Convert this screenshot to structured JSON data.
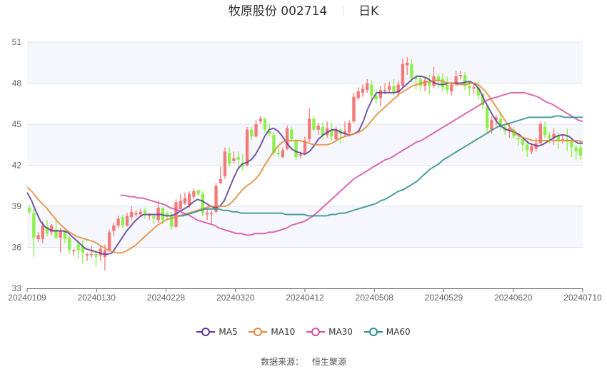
{
  "header": {
    "stock_name": "牧原股份",
    "stock_code": "002714",
    "period": "日K"
  },
  "legend": [
    {
      "label": "MA5",
      "color": "#5b3a99"
    },
    {
      "label": "MA10",
      "color": "#e08c3a"
    },
    {
      "label": "MA30",
      "color": "#d54fa0"
    },
    {
      "label": "MA60",
      "color": "#2f8c8c"
    }
  ],
  "footer": {
    "source_label": "数据来源：",
    "source_value": "恒生聚源"
  },
  "colors": {
    "up": "#f47a7a",
    "down": "#8ef04a",
    "grid": "#dde3ef",
    "band": "#f5f7fc",
    "axis": "#666666"
  },
  "chart_data": {
    "type": "candlestick",
    "title": "牧原股份 002714 日K",
    "xlabel": "",
    "ylabel": "",
    "ylim": [
      33,
      51
    ],
    "yticks": [
      33,
      36,
      39,
      42,
      45,
      48,
      51
    ],
    "xtick_labels": [
      "20240109",
      "20240130",
      "20240228",
      "20240320",
      "20240412",
      "20240508",
      "20240529",
      "20240620",
      "20240710"
    ],
    "grid": true,
    "legend_position": "bottom",
    "candles": [
      [
        38.9,
        38.6,
        39.1,
        38.4
      ],
      [
        38.5,
        36.7,
        38.8,
        35.3
      ],
      [
        36.6,
        36.9,
        37.1,
        36.4
      ],
      [
        36.6,
        37.6,
        37.9,
        36.3
      ],
      [
        37.5,
        37.0,
        38.0,
        36.8
      ],
      [
        37.1,
        37.6,
        37.7,
        36.9
      ],
      [
        37.3,
        36.7,
        38.1,
        36.6
      ],
      [
        36.7,
        37.2,
        37.4,
        35.6
      ],
      [
        37.2,
        36.6,
        37.3,
        36.3
      ],
      [
        36.7,
        35.8,
        36.8,
        35.5
      ],
      [
        35.8,
        35.8,
        35.9,
        35.4
      ],
      [
        36.2,
        35.8,
        36.4,
        35.2
      ],
      [
        36.1,
        35.6,
        36.5,
        34.8
      ],
      [
        35.4,
        35.5,
        35.6,
        35.0
      ],
      [
        35.5,
        35.5,
        36.1,
        35.2
      ],
      [
        35.5,
        35.3,
        35.8,
        34.6
      ],
      [
        35.4,
        35.9,
        36.1,
        35.0
      ],
      [
        35.3,
        35.8,
        36.2,
        34.3
      ],
      [
        35.8,
        37.1,
        37.3,
        35.7
      ],
      [
        37.2,
        37.6,
        37.8,
        36.8
      ],
      [
        37.6,
        38.1,
        38.3,
        37.4
      ],
      [
        38.2,
        37.6,
        38.4,
        37.4
      ],
      [
        37.6,
        38.3,
        38.5,
        37.5
      ],
      [
        38.2,
        38.6,
        39.0,
        38.0
      ],
      [
        38.4,
        38.5,
        38.7,
        38.2
      ],
      [
        38.4,
        38.6,
        38.8,
        38.3
      ],
      [
        38.7,
        38.5,
        38.9,
        38.1
      ],
      [
        38.3,
        38.4,
        38.5,
        38.0
      ],
      [
        38.3,
        38.1,
        38.4,
        37.7
      ],
      [
        38.0,
        38.9,
        39.4,
        37.8
      ],
      [
        38.9,
        38.0,
        38.9,
        37.7
      ],
      [
        38.5,
        38.3,
        38.6,
        38.0
      ],
      [
        38.4,
        37.5,
        38.6,
        37.3
      ],
      [
        37.5,
        39.3,
        39.5,
        37.4
      ],
      [
        38.8,
        39.4,
        39.9,
        38.7
      ],
      [
        39.2,
        39.6,
        40.0,
        39.1
      ],
      [
        39.1,
        39.9,
        40.1,
        38.9
      ],
      [
        39.7,
        40.1,
        40.3,
        39.5
      ],
      [
        40.2,
        39.9,
        40.2,
        39.7
      ],
      [
        39.9,
        38.5,
        40.1,
        38.3
      ],
      [
        38.4,
        38.5,
        38.8,
        38.0
      ],
      [
        38.5,
        38.5,
        38.7,
        37.7
      ],
      [
        38.6,
        40.5,
        40.7,
        38.5
      ],
      [
        40.7,
        41.0,
        41.9,
        40.6
      ],
      [
        41.2,
        43.0,
        43.3,
        41.0
      ],
      [
        42.9,
        42.1,
        43.3,
        41.9
      ],
      [
        42.3,
        42.5,
        43.0,
        42.1
      ],
      [
        42.6,
        42.4,
        43.0,
        41.8
      ],
      [
        42.1,
        41.9,
        42.8,
        41.6
      ],
      [
        42.0,
        44.6,
        44.8,
        41.9
      ],
      [
        44.6,
        44.1,
        44.8,
        43.8
      ],
      [
        44.1,
        45.0,
        45.3,
        44.0
      ],
      [
        45.2,
        45.4,
        45.6,
        45.0
      ],
      [
        45.4,
        44.6,
        45.4,
        44.4
      ],
      [
        44.5,
        44.3,
        45.0,
        44.1
      ],
      [
        44.2,
        42.9,
        44.4,
        42.7
      ],
      [
        42.9,
        42.8,
        43.4,
        42.6
      ],
      [
        42.6,
        43.1,
        43.3,
        42.5
      ],
      [
        43.2,
        44.7,
        44.9,
        43.1
      ],
      [
        44.6,
        43.9,
        44.8,
        43.7
      ],
      [
        43.8,
        42.6,
        43.9,
        42.4
      ],
      [
        42.7,
        42.8,
        43.0,
        42.5
      ],
      [
        42.9,
        43.8,
        44.1,
        42.8
      ],
      [
        43.9,
        45.4,
        46.2,
        43.7
      ],
      [
        45.4,
        44.6,
        45.6,
        44.5
      ],
      [
        44.6,
        44.9,
        45.1,
        44.2
      ],
      [
        44.8,
        44.2,
        45.1,
        43.9
      ],
      [
        44.2,
        44.7,
        45.2,
        44.0
      ],
      [
        44.6,
        44.1,
        45.1,
        43.8
      ],
      [
        43.9,
        44.6,
        44.8,
        43.8
      ],
      [
        44.6,
        44.3,
        44.7,
        43.6
      ],
      [
        44.3,
        44.5,
        45.2,
        44.1
      ],
      [
        44.4,
        45.1,
        45.3,
        44.1
      ],
      [
        45.2,
        47.0,
        47.3,
        45.1
      ],
      [
        46.9,
        47.4,
        47.7,
        46.8
      ],
      [
        47.3,
        47.6,
        47.9,
        47.0
      ],
      [
        47.5,
        48.0,
        48.3,
        47.3
      ],
      [
        47.9,
        47.1,
        48.2,
        46.6
      ],
      [
        47.1,
        46.8,
        47.6,
        46.5
      ],
      [
        46.9,
        47.5,
        47.8,
        46.3
      ],
      [
        47.4,
        47.5,
        48.0,
        47.2
      ],
      [
        47.5,
        47.8,
        48.1,
        47.3
      ],
      [
        47.8,
        47.3,
        48.3,
        47.1
      ],
      [
        47.3,
        47.9,
        48.2,
        47.0
      ],
      [
        47.8,
        49.4,
        49.8,
        47.7
      ],
      [
        49.3,
        49.5,
        49.9,
        48.6
      ],
      [
        49.4,
        48.4,
        49.8,
        48.1
      ],
      [
        48.4,
        48.3,
        48.6,
        47.5
      ],
      [
        48.3,
        47.8,
        48.5,
        47.4
      ],
      [
        47.8,
        48.2,
        48.4,
        47.4
      ],
      [
        48.1,
        47.8,
        48.6,
        47.2
      ],
      [
        47.8,
        48.5,
        49.2,
        47.6
      ],
      [
        48.5,
        48.2,
        48.7,
        47.6
      ],
      [
        48.3,
        47.7,
        48.7,
        47.4
      ],
      [
        47.9,
        47.5,
        48.5,
        47.2
      ],
      [
        47.4,
        47.9,
        48.1,
        47.1
      ],
      [
        47.9,
        48.5,
        48.9,
        47.8
      ],
      [
        48.5,
        48.6,
        48.9,
        48.3
      ],
      [
        48.6,
        47.8,
        48.8,
        47.5
      ],
      [
        47.8,
        47.6,
        48.2,
        47.1
      ],
      [
        47.6,
        47.7,
        48.0,
        47.2
      ],
      [
        47.7,
        47.1,
        48.1,
        46.8
      ],
      [
        47.2,
        46.4,
        47.3,
        46.1
      ],
      [
        46.3,
        44.7,
        46.4,
        44.3
      ],
      [
        44.6,
        45.3,
        45.6,
        44.3
      ],
      [
        45.3,
        45.5,
        45.7,
        44.9
      ],
      [
        45.4,
        44.8,
        45.9,
        44.6
      ],
      [
        44.8,
        44.5,
        45.0,
        44.2
      ],
      [
        44.5,
        44.7,
        45.1,
        44.0
      ],
      [
        44.6,
        44.1,
        44.8,
        43.9
      ],
      [
        44.0,
        43.9,
        44.2,
        43.4
      ],
      [
        43.9,
        43.5,
        44.1,
        43.0
      ],
      [
        43.5,
        43.1,
        43.8,
        42.6
      ],
      [
        43.0,
        43.4,
        43.6,
        42.8
      ],
      [
        43.2,
        43.6,
        44.0,
        43.0
      ],
      [
        43.6,
        45.0,
        45.2,
        43.5
      ],
      [
        44.8,
        44.2,
        45.2,
        44.0
      ],
      [
        44.2,
        44.0,
        44.4,
        43.6
      ],
      [
        44.0,
        44.3,
        44.7,
        43.5
      ],
      [
        44.2,
        43.8,
        44.4,
        43.2
      ],
      [
        43.9,
        43.9,
        44.3,
        43.6
      ],
      [
        43.9,
        43.7,
        44.7,
        43.0
      ],
      [
        43.8,
        43.3,
        43.9,
        42.6
      ],
      [
        43.3,
        43.0,
        43.5,
        42.4
      ],
      [
        43.3,
        42.7,
        43.8,
        42.4
      ]
    ],
    "series": [
      {
        "name": "MA5",
        "values": [
          40.0,
          39.4,
          38.6,
          37.9,
          37.5,
          37.3,
          37.2,
          37.2,
          37.2,
          37.1,
          36.8,
          36.5,
          36.2,
          35.9,
          35.8,
          35.7,
          35.6,
          35.5,
          35.5,
          35.6,
          36.1,
          36.6,
          37.1,
          37.5,
          37.9,
          38.2,
          38.4,
          38.4,
          38.4,
          38.4,
          38.4,
          38.3,
          38.3,
          38.4,
          38.6,
          38.8,
          39.0,
          39.3,
          39.5,
          39.4,
          39.2,
          39.0,
          38.9,
          39.0,
          39.4,
          40.2,
          41.0,
          41.7,
          42.1,
          42.2,
          42.4,
          42.8,
          43.4,
          44.1,
          44.6,
          44.7,
          44.5,
          44.1,
          43.6,
          43.2,
          43.0,
          42.9,
          42.8,
          43.0,
          43.4,
          43.9,
          44.2,
          44.4,
          44.6,
          44.6,
          44.4,
          44.3,
          44.2,
          44.3,
          44.5,
          45.2,
          46.1,
          46.8,
          47.3,
          47.3,
          47.3,
          47.3,
          47.3,
          47.4,
          47.7,
          48.0,
          48.3,
          48.5,
          48.5,
          48.4,
          48.2,
          48.0,
          47.9,
          47.9,
          48.0,
          48.0,
          48.0,
          48.0,
          48.1,
          48.1,
          47.9,
          47.5,
          46.8,
          46.2,
          45.6,
          45.1,
          44.8,
          44.6,
          44.5,
          44.4,
          44.2,
          43.9,
          43.6,
          43.5,
          43.4,
          43.5,
          43.7,
          43.9,
          44.1,
          44.2,
          44.2,
          44.1,
          43.8,
          43.6,
          43.6
        ]
      },
      {
        "name": "MA10",
        "values": [
          40.4,
          40.1,
          39.7,
          39.3,
          39.0,
          38.6,
          38.2,
          37.8,
          37.5,
          37.2,
          37.0,
          36.8,
          36.7,
          36.6,
          36.5,
          36.4,
          36.2,
          36.0,
          35.8,
          35.7,
          35.6,
          35.6,
          35.7,
          35.9,
          36.1,
          36.4,
          36.7,
          37.0,
          37.3,
          37.6,
          37.8,
          38.0,
          38.1,
          38.2,
          38.3,
          38.4,
          38.5,
          38.6,
          38.7,
          38.8,
          38.9,
          39.0,
          39.0,
          39.0,
          39.0,
          39.1,
          39.4,
          39.8,
          40.2,
          40.5,
          40.7,
          41.0,
          41.4,
          42.0,
          42.5,
          43.0,
          43.4,
          43.7,
          43.8,
          43.8,
          43.8,
          43.8,
          43.7,
          43.6,
          43.5,
          43.5,
          43.5,
          43.5,
          43.6,
          43.8,
          44.0,
          44.1,
          44.2,
          44.3,
          44.4,
          44.6,
          44.9,
          45.3,
          45.7,
          46.0,
          46.3,
          46.6,
          46.9,
          47.2,
          47.4,
          47.6,
          47.8,
          47.9,
          48.0,
          48.1,
          48.1,
          48.2,
          48.2,
          48.1,
          48.0,
          48.0,
          47.9,
          47.9,
          47.9,
          48.0,
          48.0,
          47.8,
          47.5,
          47.1,
          46.6,
          46.1,
          45.6,
          45.1,
          44.7,
          44.3,
          44.1,
          44.0,
          43.9,
          43.8,
          43.8,
          43.8,
          43.8,
          43.8,
          43.8,
          43.8,
          43.8,
          43.8,
          43.8,
          43.8,
          43.7
        ]
      },
      {
        "name": "MA30",
        "values": [
          39.8,
          39.8,
          39.7,
          39.7,
          39.6,
          39.6,
          39.5,
          39.4,
          39.3,
          39.2,
          39.1,
          38.9,
          38.8,
          38.7,
          38.5,
          38.4,
          38.2,
          38.0,
          37.9,
          37.8,
          37.7,
          37.6,
          37.4,
          37.3,
          37.2,
          37.1,
          37.0,
          37.0,
          36.9,
          36.9,
          37.0,
          37.0,
          37.0,
          37.1,
          37.1,
          37.2,
          37.3,
          37.4,
          37.6,
          37.7,
          37.8,
          37.9,
          38.1,
          38.3,
          38.6,
          38.9,
          39.2,
          39.5,
          39.8,
          40.1,
          40.4,
          40.7,
          41.0,
          41.2,
          41.4,
          41.6,
          41.8,
          42.0,
          42.2,
          42.4,
          42.5,
          42.7,
          42.9,
          43.1,
          43.3,
          43.5,
          43.7,
          43.8,
          44.0,
          44.2,
          44.4,
          44.6,
          44.8,
          45.0,
          45.2,
          45.4,
          45.6,
          45.8,
          46.0,
          46.2,
          46.4,
          46.6,
          46.8,
          46.9,
          47.0,
          47.1,
          47.2,
          47.3,
          47.3,
          47.3,
          47.3,
          47.2,
          47.1,
          47.0,
          46.8,
          46.6,
          46.5,
          46.3,
          46.1,
          45.9,
          45.7,
          45.5,
          45.3,
          45.2
        ]
      },
      {
        "name": "MA60",
        "values": [
          38.3,
          38.3,
          38.4,
          38.5,
          38.6,
          38.7,
          38.8,
          38.8,
          38.8,
          38.8,
          38.7,
          38.7,
          38.6,
          38.6,
          38.5,
          38.5,
          38.5,
          38.5,
          38.5,
          38.5,
          38.5,
          38.5,
          38.5,
          38.5,
          38.4,
          38.4,
          38.4,
          38.4,
          38.4,
          38.3,
          38.3,
          38.3,
          38.3,
          38.3,
          38.4,
          38.4,
          38.5,
          38.5,
          38.6,
          38.7,
          38.8,
          38.9,
          39.0,
          39.1,
          39.2,
          39.4,
          39.5,
          39.7,
          39.9,
          40.1,
          40.2,
          40.4,
          40.6,
          40.8,
          41.1,
          41.4,
          41.7,
          41.9,
          42.1,
          42.4,
          42.6,
          42.8,
          43.0,
          43.2,
          43.4,
          43.6,
          43.8,
          44.0,
          44.2,
          44.4,
          44.6,
          44.8,
          44.9,
          45.0,
          45.1,
          45.2,
          45.3,
          45.4,
          45.5,
          45.5,
          45.5,
          45.5,
          45.5,
          45.5,
          45.6,
          45.6,
          45.5,
          45.5,
          45.5,
          45.5,
          45.5
        ]
      }
    ]
  }
}
